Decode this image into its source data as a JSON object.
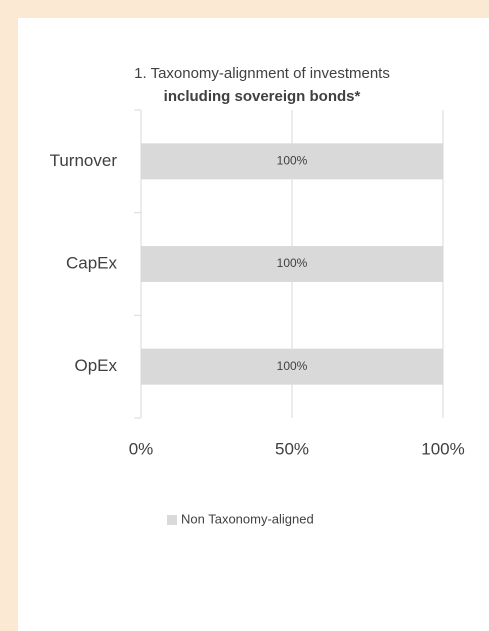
{
  "chart_data": {
    "type": "bar",
    "orientation": "horizontal",
    "title": "1. Taxonomy-alignment of investments",
    "subtitle": "including sovereign bonds*",
    "categories": [
      "Turnover",
      "CapEx",
      "OpEx"
    ],
    "series": [
      {
        "name": "Non Taxonomy-aligned",
        "color": "#d9d9d9",
        "values": [
          100,
          100,
          100
        ],
        "value_labels": [
          "100%",
          "100%",
          "100%"
        ]
      }
    ],
    "xlim": [
      0,
      100
    ],
    "xticks": [
      {
        "value": 0,
        "label": "0%"
      },
      {
        "value": 50,
        "label": "50%"
      },
      {
        "value": 100,
        "label": "100%"
      }
    ],
    "grid": true,
    "legend": "bottom"
  }
}
